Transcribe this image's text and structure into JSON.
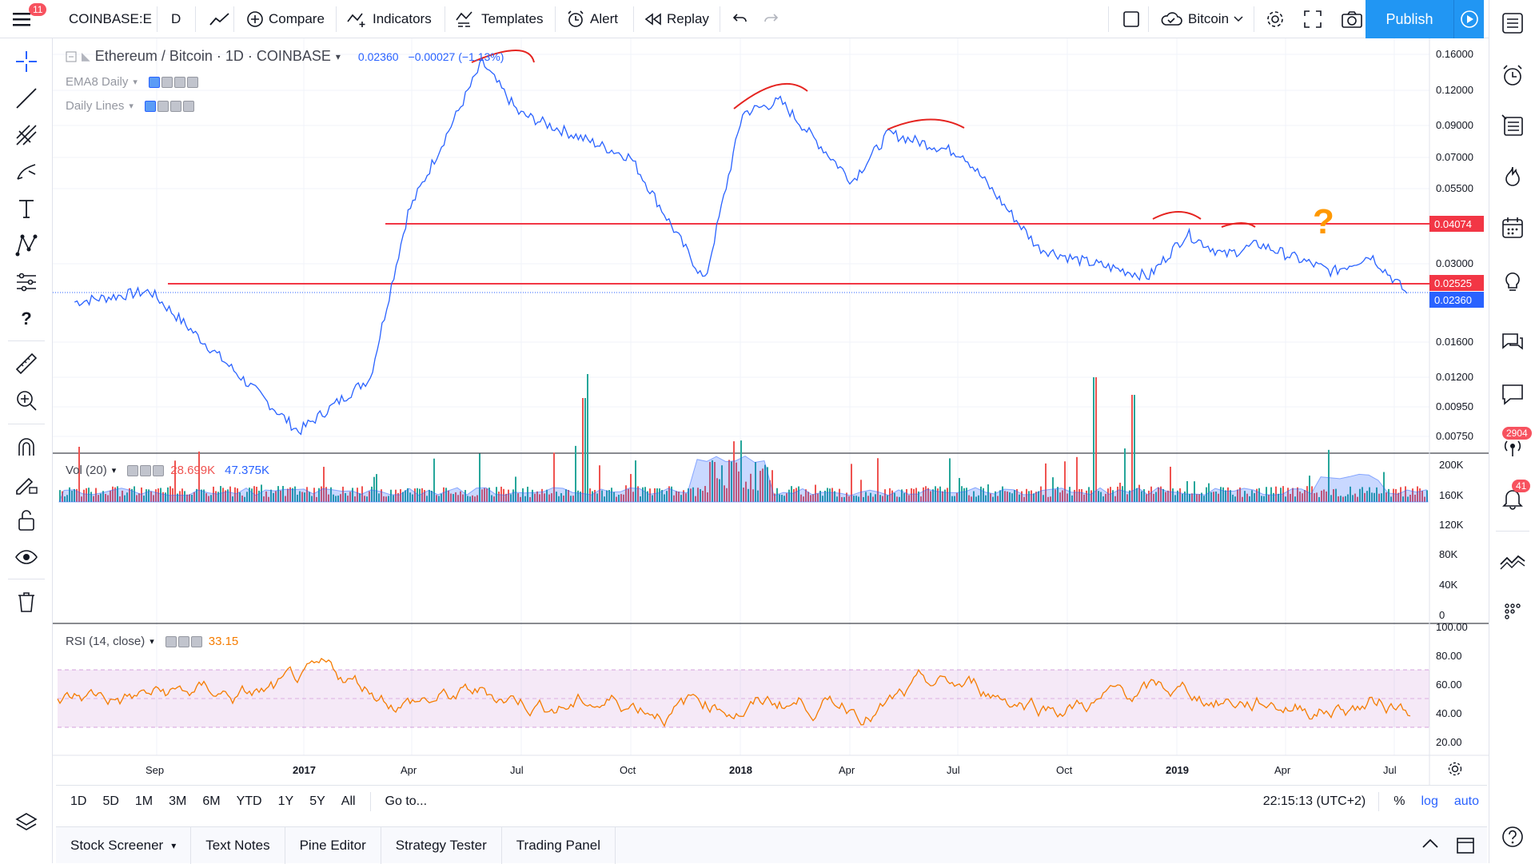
{
  "toolbar": {
    "menu_badge": "11",
    "symbol": "COINBASE:E",
    "interval": "D",
    "compare": "Compare",
    "indicators": "Indicators",
    "templates": "Templates",
    "alert": "Alert",
    "replay": "Replay",
    "bitcoin": "Bitcoin",
    "publish": "Publish"
  },
  "legend": {
    "title": "Ethereum / Bitcoin · 1D · COINBASE",
    "price": "0.02360",
    "change": "−0.00027 (−1.13%)",
    "ema": "EMA8 Daily",
    "daily_lines": "Daily Lines",
    "vol_label": "Vol (20)",
    "vol_val1": "28.699K",
    "vol_val2": "47.375K",
    "rsi_label": "RSI (14, close)",
    "rsi_val": "33.15"
  },
  "price_axis": [
    "0.16000",
    "0.12000",
    "0.09000",
    "0.07000",
    "0.05500",
    "0.03000",
    "0.01600",
    "0.01200",
    "0.00950",
    "0.00750"
  ],
  "price_tags": {
    "upper": "0.04074",
    "lower": "0.02525",
    "last": "0.02360"
  },
  "vol_axis": [
    "200K",
    "160K",
    "120K",
    "80K",
    "40K",
    "0"
  ],
  "rsi_axis": [
    "100.00",
    "80.00",
    "60.00",
    "40.00",
    "20.00"
  ],
  "time_axis": [
    "Sep",
    "2017",
    "Apr",
    "Jul",
    "Oct",
    "2018",
    "Apr",
    "Jul",
    "Oct",
    "2019",
    "Apr",
    "Jul"
  ],
  "annotation": "?",
  "colors": {
    "line": "#2962ff",
    "hline": "#f23645",
    "rsi": "#f57c00",
    "vol_up": "#26a69a",
    "vol_down": "#ef5350",
    "accent": "#2196f3"
  },
  "range_buttons": [
    "1D",
    "5D",
    "1M",
    "3M",
    "6M",
    "YTD",
    "1Y",
    "5Y",
    "All"
  ],
  "goto": "Go to...",
  "clock": "22:15:13 (UTC+2)",
  "scale_opts": [
    "%",
    "log",
    "auto"
  ],
  "footer_tabs": [
    "Stock Screener",
    "Text Notes",
    "Pine Editor",
    "Strategy Tester",
    "Trading Panel"
  ],
  "right_badges": {
    "chat": "2904",
    "alerts": "41"
  },
  "chart_data": {
    "type": "line",
    "x": [
      "2016-07",
      "2016-09",
      "2017-01",
      "2017-03",
      "2017-04",
      "2017-06",
      "2017-07",
      "2017-10",
      "2017-12",
      "2018-01",
      "2018-02",
      "2018-04",
      "2018-05",
      "2018-07",
      "2018-09",
      "2018-10",
      "2018-12",
      "2019-01",
      "2019-02",
      "2019-03",
      "2019-05",
      "2019-06",
      "2019-07"
    ],
    "values": [
      0.022,
      0.024,
      0.0078,
      0.012,
      0.045,
      0.15,
      0.1,
      0.07,
      0.026,
      0.1,
      0.11,
      0.058,
      0.085,
      0.072,
      0.034,
      0.031,
      0.027,
      0.038,
      0.032,
      0.035,
      0.028,
      0.032,
      0.0236
    ],
    "scale": "log",
    "hlines": [
      0.04074,
      0.02525
    ],
    "last": 0.0236
  }
}
